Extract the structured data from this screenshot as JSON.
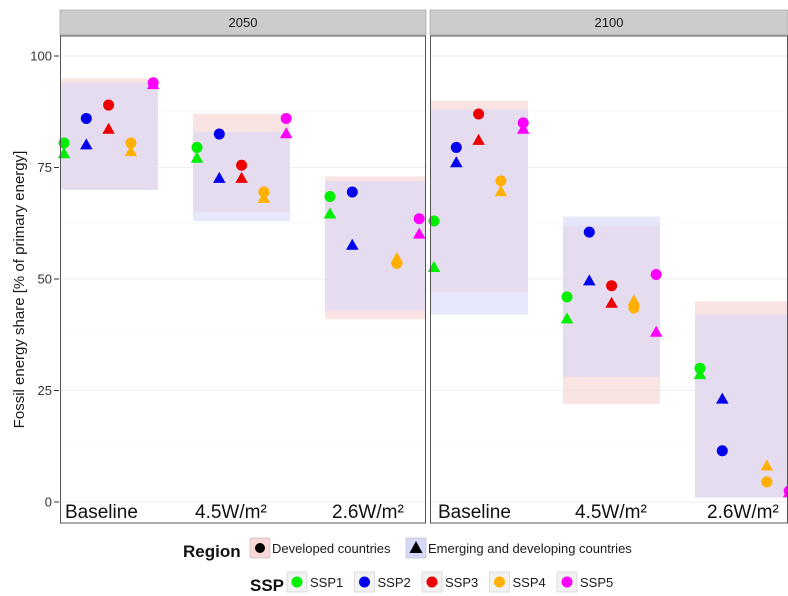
{
  "chart_data": {
    "type": "scatter",
    "ylabel": "Fossil energy share [% of primary energy]",
    "ylim": [
      0,
      105
    ],
    "yticks": [
      0,
      25,
      50,
      75,
      100
    ],
    "grid": true,
    "panels": [
      "2050",
      "2100"
    ],
    "scenarios": [
      "Baseline",
      "4.5W/m²",
      "2.6W/m²"
    ],
    "region_legend": {
      "title": "Region",
      "entries": [
        {
          "name": "Developed countries",
          "marker": "circle",
          "fill": "#f8d7d7"
        },
        {
          "name": "Emerging and developing countries",
          "marker": "triangle",
          "fill": "#d7d7f8"
        }
      ]
    },
    "ssp_legend": {
      "title": "SSP",
      "entries": [
        {
          "name": "SSP1",
          "color": "#00ee00"
        },
        {
          "name": "SSP2",
          "color": "#0000ee"
        },
        {
          "name": "SSP3",
          "color": "#ee0000"
        },
        {
          "name": "SSP4",
          "color": "#ffb000"
        },
        {
          "name": "SSP5",
          "color": "#ff00ff"
        }
      ]
    },
    "ranges": [
      {
        "panel": "2050",
        "scenario": "Baseline",
        "developed": [
          70,
          95
        ],
        "emerging": [
          70,
          94
        ]
      },
      {
        "panel": "2050",
        "scenario": "4.5W/m²",
        "developed": [
          65,
          87
        ],
        "emerging": [
          63,
          83
        ]
      },
      {
        "panel": "2050",
        "scenario": "2.6W/m²",
        "developed": [
          41,
          73
        ],
        "emerging": [
          43,
          72
        ]
      },
      {
        "panel": "2100",
        "scenario": "Baseline",
        "developed": [
          47,
          90
        ],
        "emerging": [
          42,
          88
        ]
      },
      {
        "panel": "2100",
        "scenario": "4.5W/m²",
        "developed": [
          22,
          62
        ],
        "emerging": [
          28,
          64
        ]
      },
      {
        "panel": "2100",
        "scenario": "2.6W/m²",
        "developed": [
          1,
          45
        ],
        "emerging": [
          1,
          42
        ]
      }
    ],
    "series": [
      {
        "panel": "2050",
        "scenario": "Baseline",
        "region": "Developed countries",
        "values": [
          80.5,
          86,
          89,
          80.5,
          94
        ]
      },
      {
        "panel": "2050",
        "scenario": "Baseline",
        "region": "Emerging and developing countries",
        "values": [
          78,
          80,
          83.5,
          78.5,
          93.5
        ]
      },
      {
        "panel": "2050",
        "scenario": "4.5W/m²",
        "region": "Developed countries",
        "values": [
          79.5,
          82.5,
          75.5,
          69.5,
          86
        ]
      },
      {
        "panel": "2050",
        "scenario": "4.5W/m²",
        "region": "Emerging and developing countries",
        "values": [
          77,
          72.5,
          72.5,
          68,
          82.5
        ]
      },
      {
        "panel": "2050",
        "scenario": "2.6W/m²",
        "region": "Developed countries",
        "values": [
          68.5,
          69.5,
          null,
          53.5,
          63.5
        ]
      },
      {
        "panel": "2050",
        "scenario": "2.6W/m²",
        "region": "Emerging and developing countries",
        "values": [
          64.5,
          57.5,
          null,
          54.5,
          60
        ]
      },
      {
        "panel": "2100",
        "scenario": "Baseline",
        "region": "Developed countries",
        "values": [
          63,
          79.5,
          87,
          72,
          85
        ]
      },
      {
        "panel": "2100",
        "scenario": "Baseline",
        "region": "Emerging and developing countries",
        "values": [
          52.5,
          76,
          81,
          69.5,
          83.5
        ]
      },
      {
        "panel": "2100",
        "scenario": "4.5W/m²",
        "region": "Developed countries",
        "values": [
          46,
          60.5,
          48.5,
          43.5,
          51
        ]
      },
      {
        "panel": "2100",
        "scenario": "4.5W/m²",
        "region": "Emerging and developing countries",
        "values": [
          41,
          49.5,
          44.5,
          45,
          38
        ]
      },
      {
        "panel": "2100",
        "scenario": "2.6W/m²",
        "region": "Developed countries",
        "values": [
          30,
          11.5,
          null,
          4.5,
          2.5
        ]
      },
      {
        "panel": "2100",
        "scenario": "2.6W/m²",
        "region": "Emerging and developing countries",
        "values": [
          28.5,
          23,
          null,
          8,
          2
        ]
      }
    ]
  }
}
